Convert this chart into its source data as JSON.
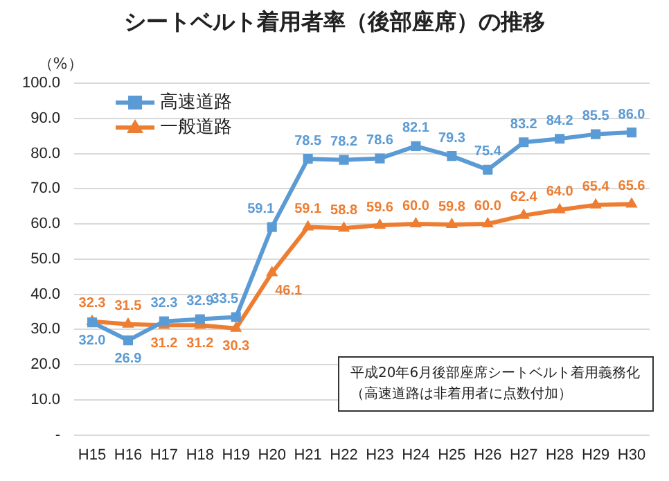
{
  "chart_data": {
    "type": "line",
    "title": "シートベルト着用者率（後部座席）の推移",
    "ylabel": "（%）",
    "categories": [
      "H15",
      "H16",
      "H17",
      "H18",
      "H19",
      "H20",
      "H21",
      "H22",
      "H23",
      "H24",
      "H25",
      "H26",
      "H27",
      "H28",
      "H29",
      "H30"
    ],
    "series": [
      {
        "name": "高速道路",
        "color": "#5b9bd5",
        "marker": "square",
        "values": [
          32.0,
          26.9,
          32.3,
          32.9,
          33.5,
          59.1,
          78.5,
          78.2,
          78.6,
          82.1,
          79.3,
          75.4,
          83.2,
          84.2,
          85.5,
          86.0
        ],
        "value_labels": [
          "32.0",
          "26.9",
          "32.3",
          "32.9",
          "33.5",
          "59.1",
          "78.5",
          "78.2",
          "78.6",
          "82.1",
          "79.3",
          "75.4",
          "83.2",
          "84.2",
          "85.5",
          "86.0"
        ]
      },
      {
        "name": "一般道路",
        "color": "#ed7d31",
        "marker": "triangle",
        "values": [
          32.3,
          31.5,
          31.2,
          31.2,
          30.3,
          46.1,
          59.1,
          58.8,
          59.6,
          60.0,
          59.8,
          60.0,
          62.4,
          64.0,
          65.4,
          65.6
        ],
        "value_labels": [
          "32.3",
          "31.5",
          "31.2",
          "31.2",
          "30.3",
          "46.1",
          "59.1",
          "58.8",
          "59.6",
          "60.0",
          "59.8",
          "60.0",
          "62.4",
          "64.0",
          "65.4",
          "65.6"
        ]
      }
    ],
    "ylim": [
      0,
      100
    ],
    "yticks": [
      {
        "value": 0,
        "label": "-"
      },
      {
        "value": 10,
        "label": "10.0"
      },
      {
        "value": 20,
        "label": "20.0"
      },
      {
        "value": 30,
        "label": "30.0"
      },
      {
        "value": 40,
        "label": "40.0"
      },
      {
        "value": 50,
        "label": "50.0"
      },
      {
        "value": 60,
        "label": "60.0"
      },
      {
        "value": 70,
        "label": "70.0"
      },
      {
        "value": 80,
        "label": "80.0"
      },
      {
        "value": 90,
        "label": "90.0"
      },
      {
        "value": 100,
        "label": "100.0"
      }
    ],
    "grid": "y",
    "legend": "top left",
    "line_style": "solid",
    "annotations": [
      "平成20年6月後部座席シートベルト着用義務化（高速道路は非着用者に点数付加）"
    ]
  }
}
